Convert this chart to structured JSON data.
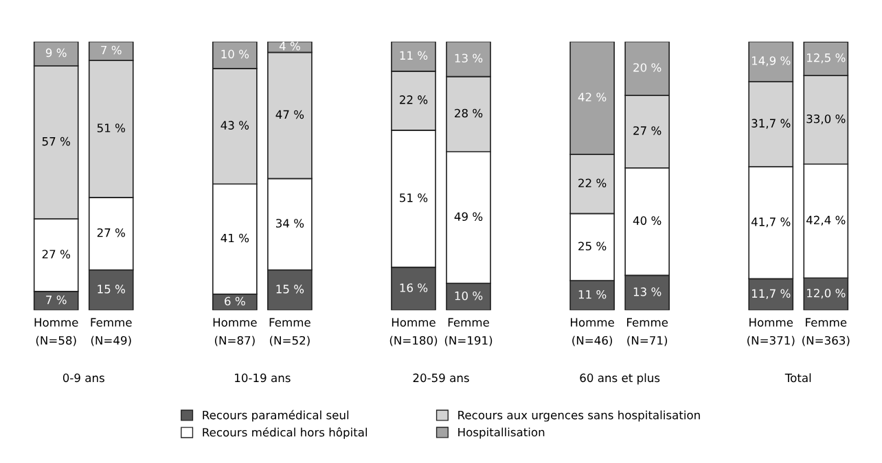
{
  "chart_data": {
    "type": "bar",
    "stacked": true,
    "tick_labels": "x",
    "ylim": [
      0,
      100
    ],
    "legend": "bottom",
    "grid": false,
    "categories": [
      "Homme\n(N=58)",
      "Femme\n(N=49)",
      "Homme\n(N=87)",
      "Femme\n(N=52)",
      "Homme\n(N=180)",
      "Femme\n(N=191)",
      "Homme\n(N=46)",
      "Femme\n(N=71)",
      "Homme\n(N=371)",
      "Femme\n(N=363)"
    ],
    "annotations": [
      "0-9 ans",
      "10-19 ans",
      "20-59 ans",
      "60 ans et plus",
      "Total"
    ],
    "series": [
      {
        "name": "Recours paramédical seul",
        "color": "#5a5a5a",
        "values": [
          7,
          15,
          6,
          15,
          16,
          10,
          11,
          13,
          11.7,
          12.0
        ],
        "value_labels": [
          "7 %",
          "15 %",
          "6 %",
          "15 %",
          "16 %",
          "10 %",
          "11 %",
          "13 %",
          "11,7 %",
          "12,0 %"
        ]
      },
      {
        "name": "Recours médical hors hôpital",
        "color": "#ffffff",
        "values": [
          27,
          27,
          41,
          34,
          51,
          49,
          25,
          40,
          41.7,
          42.4
        ],
        "value_labels": [
          "27 %",
          "27 %",
          "41 %",
          "34 %",
          "51 %",
          "49 %",
          "25 %",
          "40 %",
          "41,7 %",
          "42,4 %"
        ]
      },
      {
        "name": "Recours aux urgences sans hospitalisation",
        "color": "#d3d3d3",
        "values": [
          57,
          51,
          43,
          47,
          22,
          28,
          22,
          27,
          31.7,
          33.0
        ],
        "value_labels": [
          "57 %",
          "51 %",
          "43 %",
          "47 %",
          "22 %",
          "28 %",
          "22 %",
          "27 %",
          "31,7 %",
          "33,0 %"
        ]
      },
      {
        "name": "Hospitallisation",
        "color": "#a3a3a3",
        "values": [
          9,
          7,
          10,
          4,
          11,
          13,
          42,
          20,
          14.9,
          12.5
        ],
        "value_labels": [
          "9 %",
          "7 %",
          "10 %",
          "4 %",
          "11 %",
          "13 %",
          "42 %",
          "20 %",
          "14,9 %",
          "12,5 %"
        ]
      }
    ]
  }
}
